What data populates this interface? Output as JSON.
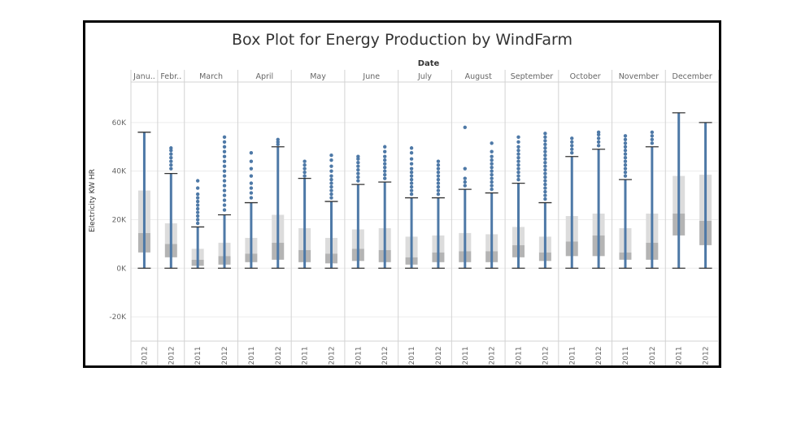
{
  "chart_data": {
    "type": "box",
    "title": "Box Plot for Energy Production by WindFarm",
    "column_header": "Date",
    "ylabel": "Electricity KW HR",
    "ylim": [
      -30000,
      75000
    ],
    "y_ticks": [
      {
        "value": 60000,
        "label": "60K"
      },
      {
        "value": 40000,
        "label": "40K"
      },
      {
        "value": 20000,
        "label": "20K"
      },
      {
        "value": 0,
        "label": "0K"
      },
      {
        "value": -20000,
        "label": "-20K"
      }
    ],
    "months": [
      {
        "label": "Janu..",
        "years": [
          "2012"
        ]
      },
      {
        "label": "Febr..",
        "years": [
          "2012"
        ]
      },
      {
        "label": "March",
        "years": [
          "2011",
          "2012"
        ]
      },
      {
        "label": "April",
        "years": [
          "2011",
          "2012"
        ]
      },
      {
        "label": "May",
        "years": [
          "2011",
          "2012"
        ]
      },
      {
        "label": "June",
        "years": [
          "2011",
          "2012"
        ]
      },
      {
        "label": "July",
        "years": [
          "2011",
          "2012"
        ]
      },
      {
        "label": "August",
        "years": [
          "2011",
          "2012"
        ]
      },
      {
        "label": "September",
        "years": [
          "2011",
          "2012"
        ]
      },
      {
        "label": "October",
        "years": [
          "2011",
          "2012"
        ]
      },
      {
        "label": "November",
        "years": [
          "2011",
          "2012"
        ]
      },
      {
        "label": "December",
        "years": [
          "2011",
          "2012"
        ]
      }
    ],
    "boxes": [
      {
        "month": "Janu..",
        "year": "2012",
        "min": 0,
        "q1": 6500,
        "median": 14500,
        "q3": 32000,
        "max": 56000,
        "outliers": []
      },
      {
        "month": "Febr..",
        "year": "2012",
        "min": 0,
        "q1": 4500,
        "median": 10000,
        "q3": 18500,
        "max": 39000,
        "outliers": [
          41000,
          42500,
          44000,
          45500,
          47000,
          48500,
          49500
        ]
      },
      {
        "month": "March",
        "year": "2011",
        "min": 0,
        "q1": 1000,
        "median": 3500,
        "q3": 8000,
        "max": 17000,
        "outliers": [
          18500,
          20000,
          21500,
          23000,
          24500,
          26000,
          27500,
          29000,
          30500,
          33000,
          36000
        ]
      },
      {
        "month": "March",
        "year": "2012",
        "min": 0,
        "q1": 1500,
        "median": 5000,
        "q3": 10500,
        "max": 22000,
        "outliers": [
          24000,
          26000,
          28000,
          30000,
          32000,
          34000,
          36000,
          38000,
          40000,
          42000,
          44000,
          46000,
          48000,
          50000,
          52000,
          54000
        ]
      },
      {
        "month": "April",
        "year": "2011",
        "min": 0,
        "q1": 2500,
        "median": 6000,
        "q3": 12500,
        "max": 27000,
        "outliers": [
          29000,
          31000,
          33000,
          35000,
          38000,
          41000,
          44000,
          47500
        ]
      },
      {
        "month": "April",
        "year": "2012",
        "min": 0,
        "q1": 3500,
        "median": 10500,
        "q3": 22000,
        "max": 50000,
        "outliers": [
          51000,
          52000,
          53000
        ]
      },
      {
        "month": "May",
        "year": "2011",
        "min": 0,
        "q1": 2500,
        "median": 7500,
        "q3": 16500,
        "max": 37000,
        "outliers": [
          38000,
          39500,
          41000,
          42500,
          44000
        ]
      },
      {
        "month": "May",
        "year": "2012",
        "min": 0,
        "q1": 2000,
        "median": 6000,
        "q3": 12500,
        "max": 27500,
        "outliers": [
          29000,
          30500,
          32000,
          33500,
          35000,
          36500,
          38000,
          40000,
          42000,
          44500,
          46500
        ]
      },
      {
        "month": "June",
        "year": "2011",
        "min": 0,
        "q1": 3000,
        "median": 8000,
        "q3": 16000,
        "max": 34500,
        "outliers": [
          36000,
          37500,
          39000,
          40500,
          42000,
          43500,
          45000,
          46000
        ]
      },
      {
        "month": "June",
        "year": "2012",
        "min": 0,
        "q1": 2500,
        "median": 7500,
        "q3": 16500,
        "max": 35500,
        "outliers": [
          37000,
          38500,
          40000,
          41500,
          43000,
          44500,
          46000,
          48000,
          50000
        ]
      },
      {
        "month": "July",
        "year": "2011",
        "min": 0,
        "q1": 1500,
        "median": 4500,
        "q3": 13000,
        "max": 29000,
        "outliers": [
          30500,
          32000,
          33500,
          35000,
          36500,
          38000,
          39500,
          41000,
          43000,
          45000,
          47500,
          49500
        ]
      },
      {
        "month": "July",
        "year": "2012",
        "min": 0,
        "q1": 2500,
        "median": 6500,
        "q3": 13500,
        "max": 29000,
        "outliers": [
          30500,
          32000,
          33500,
          35000,
          36500,
          38000,
          39500,
          41000,
          42500,
          44000
        ]
      },
      {
        "month": "August",
        "year": "2011",
        "min": 0,
        "q1": 2500,
        "median": 7000,
        "q3": 14500,
        "max": 32500,
        "outliers": [
          34000,
          35500,
          37000,
          41000,
          58000
        ]
      },
      {
        "month": "August",
        "year": "2012",
        "min": 0,
        "q1": 2500,
        "median": 7000,
        "q3": 14000,
        "max": 31000,
        "outliers": [
          32500,
          34000,
          35500,
          37000,
          38500,
          40000,
          41500,
          43000,
          44500,
          46000,
          48000,
          51500
        ]
      },
      {
        "month": "September",
        "year": "2011",
        "min": 0,
        "q1": 4500,
        "median": 9500,
        "q3": 17000,
        "max": 35000,
        "outliers": [
          36500,
          38000,
          39500,
          41000,
          42500,
          44000,
          45500,
          47000,
          48500,
          50000,
          52000,
          54000
        ]
      },
      {
        "month": "September",
        "year": "2012",
        "min": 0,
        "q1": 3000,
        "median": 6500,
        "q3": 13000,
        "max": 27000,
        "outliers": [
          28500,
          30000,
          31500,
          33000,
          34500,
          36000,
          37500,
          39000,
          40500,
          42000,
          43500,
          45000,
          46500,
          48000,
          49500,
          51000,
          52500,
          54000,
          55500
        ]
      },
      {
        "month": "October",
        "year": "2011",
        "min": 0,
        "q1": 5000,
        "median": 11000,
        "q3": 21500,
        "max": 46000,
        "outliers": [
          47500,
          49000,
          50500,
          52000,
          53500
        ]
      },
      {
        "month": "October",
        "year": "2012",
        "min": 0,
        "q1": 5000,
        "median": 13500,
        "q3": 22500,
        "max": 49000,
        "outliers": [
          50500,
          52000,
          53500,
          55000,
          56000
        ]
      },
      {
        "month": "November",
        "year": "2011",
        "min": 0,
        "q1": 3500,
        "median": 6500,
        "q3": 16500,
        "max": 36500,
        "outliers": [
          38000,
          39500,
          41000,
          42500,
          44000,
          45500,
          47000,
          48500,
          50000,
          51500,
          53000,
          54500
        ]
      },
      {
        "month": "November",
        "year": "2012",
        "min": 0,
        "q1": 3500,
        "median": 10500,
        "q3": 22500,
        "max": 50000,
        "outliers": [
          51500,
          53000,
          54500,
          56000
        ]
      },
      {
        "month": "December",
        "year": "2011",
        "min": 0,
        "q1": 13500,
        "median": 22500,
        "q3": 38000,
        "max": 64000,
        "outliers": []
      },
      {
        "month": "December",
        "year": "2012",
        "min": 0,
        "q1": 9500,
        "median": 19500,
        "q3": 38500,
        "max": 60000,
        "outliers": []
      }
    ],
    "colors": {
      "whisker": "#4e79a7",
      "upper_box": "#dcdcdc",
      "lower_box": "#b4b4b4",
      "outlier": "#4e79a7",
      "grid": "#ececec",
      "divider": "#d3d3d3",
      "text": "#666666"
    }
  }
}
